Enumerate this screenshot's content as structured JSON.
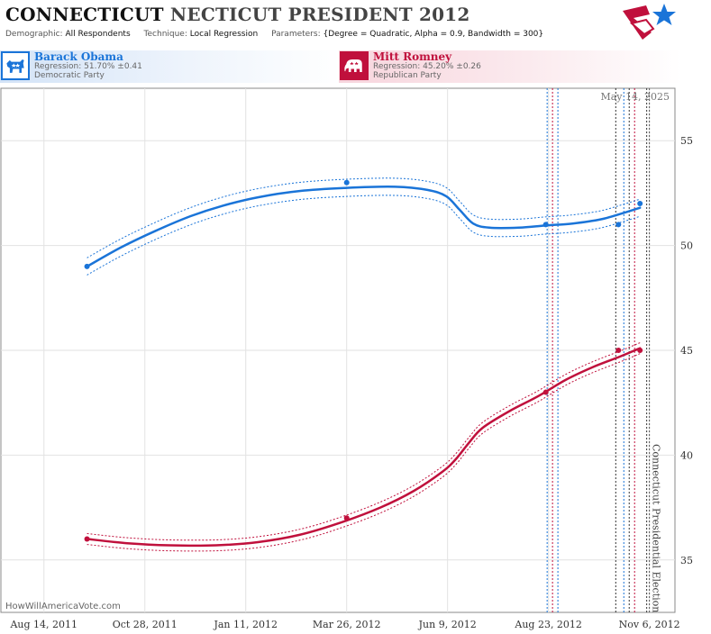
{
  "header": {
    "title_part1": "CONNECTICUT",
    "title_part2": "NECTICUT PRESIDENT 2012",
    "demographic_label": "Demographic:",
    "demographic_value": "All Respondents",
    "technique_label": "Technique:",
    "technique_value": "Local Regression",
    "parameters_label": "Parameters:",
    "parameters_value": "{Degree = Quadratic, Alpha = 0.9, Bandwidth = 300}"
  },
  "candidates": [
    {
      "name": "Barack Obama",
      "regression": "Regression: 51.70% ±0.41",
      "party": "Democratic Party",
      "color": "#1a74d8",
      "icon": "donkey-icon"
    },
    {
      "name": "Mitt Romney",
      "regression": "Regression: 45.20% ±0.26",
      "party": "Republican Party",
      "color": "#c0103c",
      "icon": "elephant-icon"
    }
  ],
  "watermark": "HowWillAmericaVote.com",
  "chart_data": {
    "type": "line",
    "date_annotation": "May 14, 2025",
    "event_label": "Connecticut Presidential Election",
    "event_date": "2012-11-06",
    "x_ticks": [
      "2011-08-14",
      "2011-10-28",
      "2012-01-11",
      "2012-03-26",
      "2012-06-09",
      "2012-08-23",
      "2012-11-06"
    ],
    "x_tick_labels": [
      "Aug 14, 2011",
      "Oct 28, 2011",
      "Jan 11, 2012",
      "Mar 26, 2012",
      "Jun 9, 2012",
      "Aug 23, 2012",
      "Nov 6, 2012"
    ],
    "y_ticks": [
      35,
      40,
      45,
      50,
      55
    ],
    "xlim": [
      "2011-07-13",
      "2012-11-25"
    ],
    "ylim": [
      32.5,
      57.5
    ],
    "grid": true,
    "poll_date_lines": [
      {
        "date": "2012-08-22",
        "color": "#1a74d8"
      },
      {
        "date": "2012-08-26",
        "color": "#c0103c"
      },
      {
        "date": "2012-08-30",
        "color": "#1a74d8"
      },
      {
        "date": "2012-10-12",
        "color": "#333333"
      },
      {
        "date": "2012-10-18",
        "color": "#1a74d8"
      },
      {
        "date": "2012-10-22",
        "color": "#333333"
      },
      {
        "date": "2012-10-26",
        "color": "#c0103c"
      },
      {
        "date": "2012-11-04",
        "color": "#333333"
      }
    ],
    "series": [
      {
        "name": "Barack Obama",
        "color": "#1a74d8",
        "band": 0.41,
        "trend": [
          [
            "2011-09-15",
            49.0
          ],
          [
            "2011-10-10",
            49.9
          ],
          [
            "2011-11-05",
            50.7
          ],
          [
            "2011-12-01",
            51.4
          ],
          [
            "2011-12-25",
            51.9
          ],
          [
            "2012-01-20",
            52.3
          ],
          [
            "2012-02-20",
            52.6
          ],
          [
            "2012-03-26",
            52.75
          ],
          [
            "2012-05-01",
            52.8
          ],
          [
            "2012-05-25",
            52.65
          ],
          [
            "2012-06-08",
            52.35
          ],
          [
            "2012-06-18",
            51.7
          ],
          [
            "2012-06-28",
            51.05
          ],
          [
            "2012-07-10",
            50.85
          ],
          [
            "2012-08-01",
            50.85
          ],
          [
            "2012-08-20",
            50.95
          ],
          [
            "2012-09-10",
            51.05
          ],
          [
            "2012-10-01",
            51.25
          ],
          [
            "2012-10-20",
            51.6
          ],
          [
            "2012-10-30",
            51.8
          ]
        ],
        "points": [
          [
            "2011-09-15",
            49
          ],
          [
            "2012-03-26",
            53
          ],
          [
            "2012-08-21",
            51
          ],
          [
            "2012-10-14",
            51
          ],
          [
            "2012-10-30",
            52
          ]
        ]
      },
      {
        "name": "Mitt Romney",
        "color": "#c0103c",
        "band": 0.26,
        "trend": [
          [
            "2011-09-15",
            36.0
          ],
          [
            "2011-10-15",
            35.8
          ],
          [
            "2011-11-15",
            35.7
          ],
          [
            "2011-12-20",
            35.7
          ],
          [
            "2012-01-20",
            35.85
          ],
          [
            "2012-02-20",
            36.2
          ],
          [
            "2012-03-20",
            36.75
          ],
          [
            "2012-04-20",
            37.5
          ],
          [
            "2012-05-15",
            38.3
          ],
          [
            "2012-06-05",
            39.2
          ],
          [
            "2012-06-15",
            39.8
          ],
          [
            "2012-06-25",
            40.6
          ],
          [
            "2012-07-05",
            41.3
          ],
          [
            "2012-07-25",
            42.1
          ],
          [
            "2012-08-15",
            42.8
          ],
          [
            "2012-09-05",
            43.6
          ],
          [
            "2012-09-25",
            44.2
          ],
          [
            "2012-10-15",
            44.7
          ],
          [
            "2012-10-30",
            45.1
          ]
        ],
        "points": [
          [
            "2011-09-15",
            36
          ],
          [
            "2012-03-26",
            37
          ],
          [
            "2012-08-21",
            43
          ],
          [
            "2012-10-14",
            45
          ],
          [
            "2012-10-30",
            45
          ]
        ]
      }
    ]
  }
}
